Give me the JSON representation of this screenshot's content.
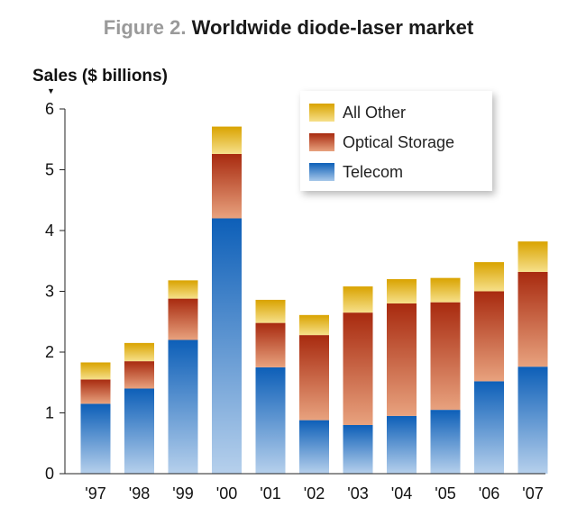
{
  "figure_label": "Figure 2.",
  "chart_data": {
    "type": "bar",
    "stacked": true,
    "title": "Worldwide diode-laser market",
    "ylabel": "Sales ($ billions)",
    "xlabel": "",
    "categories": [
      "'97",
      "'98",
      "'99",
      "'00",
      "'01",
      "'02",
      "'03",
      "'04",
      "'05",
      "'06",
      "'07"
    ],
    "ylim": [
      0,
      6
    ],
    "yticks": [
      "0",
      "1",
      "2",
      "3",
      "4",
      "5",
      "6"
    ],
    "legend_position": "top-right",
    "series": [
      {
        "name": "Telecom",
        "color": "#1f6fbf",
        "values": [
          1.15,
          1.4,
          2.2,
          4.2,
          1.75,
          0.88,
          0.8,
          0.95,
          1.05,
          1.52,
          1.76
        ]
      },
      {
        "name": "Optical Storage",
        "color": "#b0351a",
        "values": [
          0.4,
          0.45,
          0.68,
          1.06,
          0.73,
          1.4,
          1.85,
          1.85,
          1.77,
          1.48,
          1.56
        ]
      },
      {
        "name": "All Other",
        "color": "#e2b522",
        "values": [
          0.28,
          0.3,
          0.3,
          0.45,
          0.38,
          0.33,
          0.43,
          0.4,
          0.4,
          0.48,
          0.5
        ]
      }
    ]
  },
  "legend": [
    {
      "label": "All Other",
      "color": "#e2b522"
    },
    {
      "label": "Optical Storage",
      "color": "#b0351a"
    },
    {
      "label": "Telecom",
      "color": "#1f6fbf"
    }
  ]
}
